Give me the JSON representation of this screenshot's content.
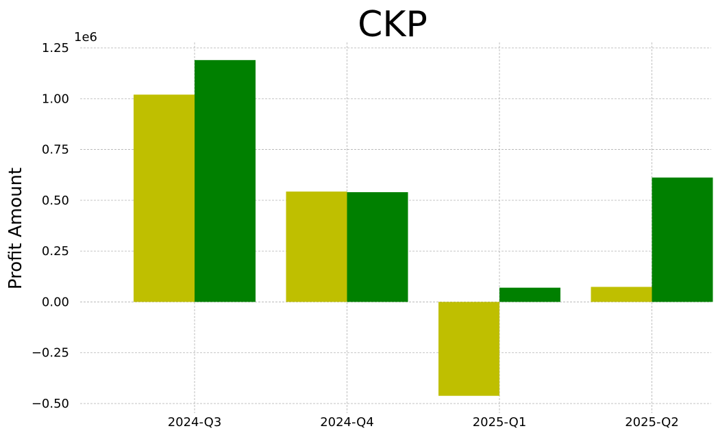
{
  "chart_data": {
    "type": "bar",
    "title": "CKP",
    "xlabel": "",
    "ylabel": "Profit Amount",
    "y_offset_text": "1e6",
    "categories": [
      "2024-Q3",
      "2024-Q4",
      "2025-Q1",
      "2025-Q2"
    ],
    "series": [
      {
        "color": "#bfbf00",
        "values": [
          1020000,
          543000,
          -462000,
          74000
        ]
      },
      {
        "color": "#008000",
        "values": [
          1190000,
          540000,
          70000,
          612000
        ]
      }
    ],
    "ylim": [
      -0.5,
      1.25
    ],
    "y_scale": 1000000,
    "yticks": [
      1.25,
      1.0,
      0.75,
      0.5,
      0.25,
      0.0,
      -0.25,
      -0.5
    ],
    "ytick_labels": [
      "1.25",
      "1.00",
      "0.75",
      "0.50",
      "0.25",
      "0.00",
      "−0.25",
      "−0.50"
    ],
    "grid": true,
    "legend": "none"
  }
}
